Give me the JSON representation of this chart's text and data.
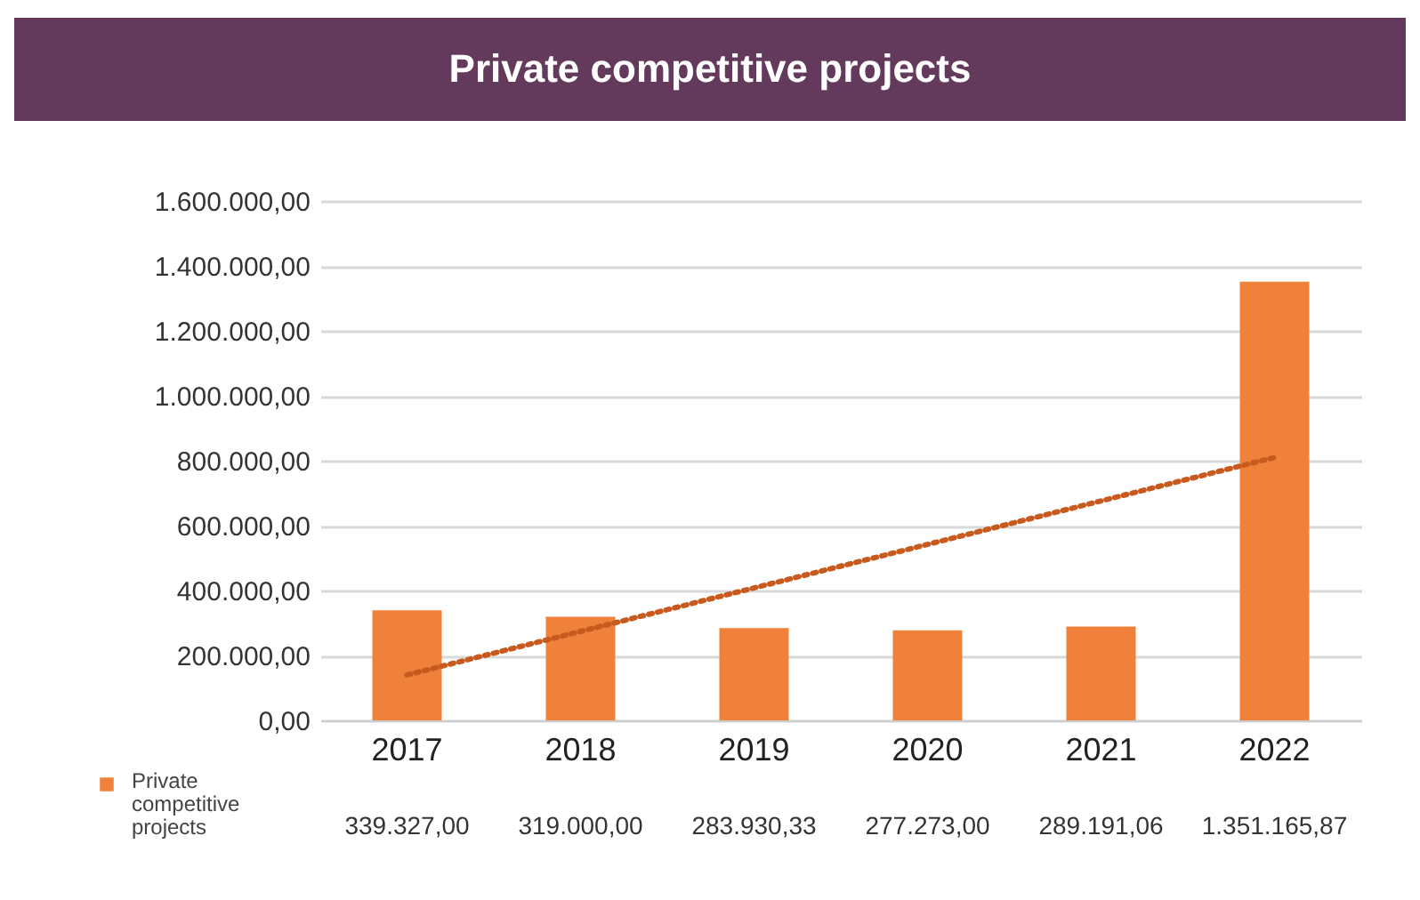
{
  "chart_data": {
    "type": "bar",
    "title": "Private competitive projects",
    "categories": [
      "2017",
      "2018",
      "2019",
      "2020",
      "2021",
      "2022"
    ],
    "series": [
      {
        "name": "Private competitive projects",
        "color": "#f0813a",
        "values": [
          339327.0,
          319000.0,
          283930.33,
          277273.0,
          289191.06,
          1351165.87
        ],
        "value_labels": [
          "339.327,00",
          "319.000,00",
          "283.930,33",
          "277.273,00",
          "289.191,06",
          "1.351.165,87"
        ]
      },
      {
        "type": "line",
        "color": "#c85a1e",
        "line_style": "dotted",
        "values": [
          140000,
          274000,
          408000,
          542000,
          676000,
          810000
        ]
      }
    ],
    "ylim": [
      0,
      1600000
    ],
    "yticks": [
      {
        "value": 0,
        "label": "0,00"
      },
      {
        "value": 200000,
        "label": "200.000,00"
      },
      {
        "value": 400000,
        "label": "400.000,00"
      },
      {
        "value": 600000,
        "label": "600.000,00"
      },
      {
        "value": 800000,
        "label": "800.000,00"
      },
      {
        "value": 1000000,
        "label": "1.000.000,00"
      },
      {
        "value": 1200000,
        "label": "1.200.000,00"
      },
      {
        "value": 1400000,
        "label": "1.400.000,00"
      },
      {
        "value": 1600000,
        "label": "1.600.000,00"
      }
    ],
    "grid": "y",
    "legend": "bottom left"
  }
}
